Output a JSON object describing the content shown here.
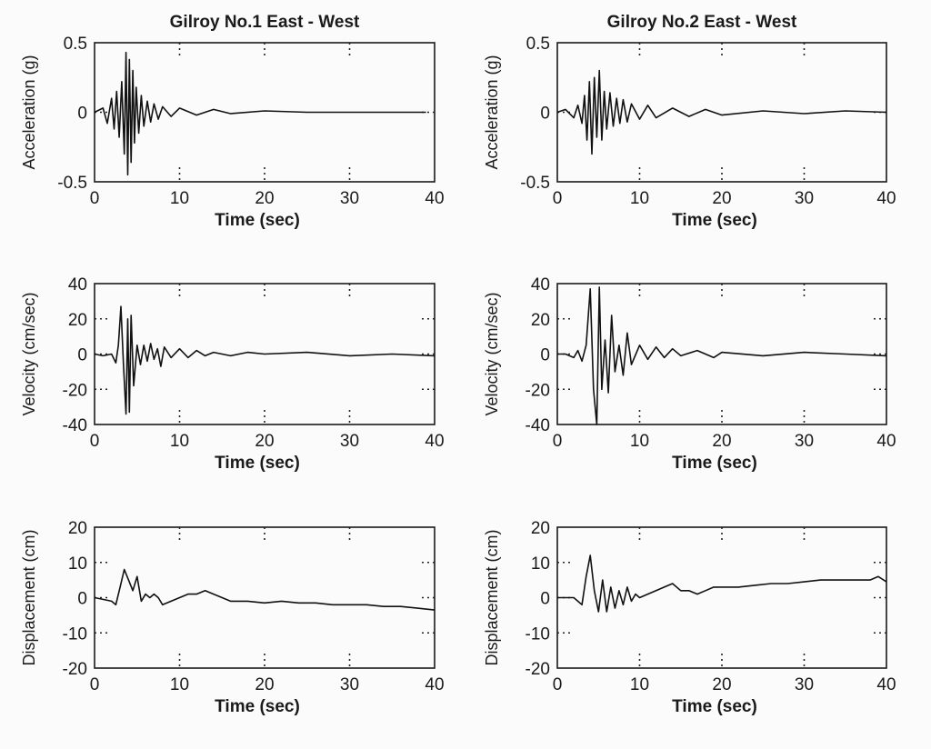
{
  "chart_data": [
    {
      "type": "line",
      "title": "Gilroy No.1 East - West",
      "xlabel": "Time (sec)",
      "ylabel": "Acceleration (g)",
      "xlim": [
        0,
        40
      ],
      "ylim": [
        -0.5,
        0.5
      ],
      "xticks": [
        0,
        10,
        20,
        30,
        40
      ],
      "yticks": [
        {
          "v": 0.5,
          "label": "0.5"
        },
        {
          "v": 0,
          "label": "0"
        },
        {
          "v": -0.5,
          "label": "-0.5"
        }
      ],
      "grid": "dotted",
      "series": [
        {
          "x": [
            0,
            1,
            1.5,
            2,
            2.3,
            2.6,
            2.9,
            3.2,
            3.5,
            3.7,
            3.9,
            4.1,
            4.3,
            4.5,
            4.7,
            4.9,
            5.2,
            5.5,
            5.8,
            6.2,
            6.6,
            7,
            7.5,
            8,
            9,
            10,
            12,
            14,
            16,
            20,
            25,
            30,
            35,
            39
          ],
          "y": [
            0,
            0.03,
            -0.08,
            0.1,
            -0.12,
            0.15,
            -0.18,
            0.22,
            -0.3,
            0.43,
            -0.45,
            0.38,
            -0.36,
            0.3,
            -0.22,
            0.18,
            -0.15,
            0.12,
            -0.1,
            0.08,
            -0.07,
            0.06,
            -0.05,
            0.04,
            -0.03,
            0.03,
            -0.02,
            0.02,
            -0.01,
            0.01,
            0,
            0,
            0,
            0
          ]
        }
      ]
    },
    {
      "type": "line",
      "title": "Gilroy No.2 East - West",
      "xlabel": "Time (sec)",
      "ylabel": "Acceleration (g)",
      "xlim": [
        0,
        40
      ],
      "ylim": [
        -0.5,
        0.5
      ],
      "xticks": [
        0,
        10,
        20,
        30,
        40
      ],
      "yticks": [
        {
          "v": 0.5,
          "label": "0.5"
        },
        {
          "v": 0,
          "label": "0"
        },
        {
          "v": -0.5,
          "label": "-0.5"
        }
      ],
      "grid": "dotted",
      "series": [
        {
          "x": [
            0,
            1,
            2,
            2.5,
            3,
            3.3,
            3.6,
            3.9,
            4.2,
            4.5,
            4.8,
            5.1,
            5.4,
            5.7,
            6,
            6.4,
            6.8,
            7.2,
            7.6,
            8,
            8.5,
            9,
            10,
            11,
            12,
            14,
            16,
            18,
            20,
            25,
            30,
            35,
            40
          ],
          "y": [
            0,
            0.02,
            -0.04,
            0.05,
            -0.08,
            0.12,
            -0.2,
            0.22,
            -0.3,
            0.25,
            -0.18,
            0.3,
            -0.2,
            0.15,
            -0.12,
            0.14,
            -0.1,
            0.1,
            -0.08,
            0.09,
            -0.07,
            0.06,
            -0.05,
            0.05,
            -0.04,
            0.03,
            -0.03,
            0.02,
            -0.02,
            0.01,
            -0.01,
            0.01,
            0
          ]
        }
      ]
    },
    {
      "type": "line",
      "xlabel": "Time (sec)",
      "ylabel": "Velocity (cm/sec)",
      "xlim": [
        0,
        40
      ],
      "ylim": [
        -40,
        40
      ],
      "xticks": [
        0,
        10,
        20,
        30,
        40
      ],
      "yticks": [
        {
          "v": 40,
          "label": "40"
        },
        {
          "v": 20,
          "label": "20"
        },
        {
          "v": 0,
          "label": "0"
        },
        {
          "v": -20,
          "label": "-20"
        },
        {
          "v": -40,
          "label": "-40"
        }
      ],
      "grid": "dotted",
      "series": [
        {
          "x": [
            0,
            1,
            2,
            2.5,
            2.8,
            3.1,
            3.4,
            3.7,
            3.9,
            4.1,
            4.3,
            4.6,
            5,
            5.4,
            5.8,
            6.2,
            6.6,
            7,
            7.4,
            7.8,
            8.2,
            9,
            10,
            11,
            12,
            13,
            14,
            16,
            18,
            20,
            25,
            30,
            35,
            40
          ],
          "y": [
            0,
            -1,
            0,
            -5,
            5,
            27,
            -6,
            -34,
            20,
            -33,
            22,
            -18,
            5,
            -6,
            5,
            -4,
            6,
            -3,
            3,
            -7,
            4,
            -2,
            3,
            -2,
            2,
            -1,
            1,
            -1,
            1,
            0,
            1,
            -1,
            0,
            -1
          ]
        }
      ]
    },
    {
      "type": "line",
      "xlabel": "Time (sec)",
      "ylabel": "Velocity (cm/sec)",
      "xlim": [
        0,
        40
      ],
      "ylim": [
        -40,
        40
      ],
      "xticks": [
        0,
        10,
        20,
        30,
        40
      ],
      "yticks": [
        {
          "v": 40,
          "label": "40"
        },
        {
          "v": 20,
          "label": "20"
        },
        {
          "v": 0,
          "label": "0"
        },
        {
          "v": -20,
          "label": "-20"
        },
        {
          "v": -40,
          "label": "-40"
        }
      ],
      "grid": "dotted",
      "series": [
        {
          "x": [
            0,
            1,
            2,
            2.5,
            3,
            3.5,
            4,
            4.4,
            4.8,
            5.1,
            5.4,
            5.8,
            6.2,
            6.6,
            7,
            7.5,
            8,
            8.5,
            9,
            10,
            11,
            12,
            13,
            14,
            15,
            17,
            19,
            20,
            25,
            30,
            35,
            40
          ],
          "y": [
            0,
            0,
            -2,
            2,
            -4,
            5,
            37,
            -20,
            -40,
            38,
            -20,
            8,
            -22,
            22,
            -10,
            5,
            -12,
            12,
            -6,
            5,
            -3,
            4,
            -2,
            3,
            -1,
            2,
            -2,
            1,
            -1,
            1,
            0,
            -1
          ]
        }
      ]
    },
    {
      "type": "line",
      "xlabel": "Time (sec)",
      "ylabel": "Displacement (cm)",
      "xlim": [
        0,
        40
      ],
      "ylim": [
        -20,
        20
      ],
      "xticks": [
        0,
        10,
        20,
        30,
        40
      ],
      "yticks": [
        {
          "v": 20,
          "label": "20"
        },
        {
          "v": 10,
          "label": "10"
        },
        {
          "v": 0,
          "label": "0"
        },
        {
          "v": -10,
          "label": "-10"
        },
        {
          "v": -20,
          "label": "-20"
        }
      ],
      "grid": "dotted",
      "series": [
        {
          "x": [
            0,
            1,
            2,
            2.5,
            3,
            3.5,
            4,
            4.5,
            5,
            5.5,
            6,
            6.5,
            7,
            7.5,
            8,
            9,
            10,
            11,
            12,
            13,
            14,
            15,
            16,
            18,
            20,
            22,
            24,
            26,
            28,
            30,
            32,
            34,
            36,
            38,
            40
          ],
          "y": [
            0,
            -0.5,
            -1,
            -2,
            3,
            8,
            5,
            2,
            6,
            -1,
            1,
            0,
            1,
            0,
            -2,
            -1,
            0,
            1,
            1,
            2,
            1,
            0,
            -1,
            -1,
            -1.5,
            -1,
            -1.5,
            -1.5,
            -2,
            -2,
            -2,
            -2.5,
            -2.5,
            -3,
            -3.5
          ]
        }
      ]
    },
    {
      "type": "line",
      "xlabel": "Time (sec)",
      "ylabel": "Displacement (cm)",
      "xlim": [
        0,
        40
      ],
      "ylim": [
        -20,
        20
      ],
      "xticks": [
        0,
        10,
        20,
        30,
        40
      ],
      "yticks": [
        {
          "v": 20,
          "label": "20"
        },
        {
          "v": 10,
          "label": "10"
        },
        {
          "v": 0,
          "label": "0"
        },
        {
          "v": -10,
          "label": "-10"
        },
        {
          "v": -20,
          "label": "-20"
        }
      ],
      "grid": "dotted",
      "series": [
        {
          "x": [
            0,
            1,
            2,
            2.5,
            3,
            3.5,
            4,
            4.5,
            5,
            5.5,
            6,
            6.5,
            7,
            7.5,
            8,
            8.5,
            9,
            9.5,
            10,
            11,
            12,
            13,
            14,
            15,
            16,
            17,
            18,
            19,
            20,
            22,
            24,
            26,
            28,
            30,
            32,
            34,
            36,
            38,
            39,
            40
          ],
          "y": [
            0,
            0,
            0,
            -1,
            -2,
            6,
            12,
            2,
            -4,
            5,
            -4,
            3,
            -3,
            2,
            -2,
            3,
            -1,
            1,
            0,
            1,
            2,
            3,
            4,
            2,
            2,
            1,
            2,
            3,
            3,
            3,
            3.5,
            4,
            4,
            4.5,
            5,
            5,
            5,
            5,
            6,
            4.5
          ]
        }
      ]
    }
  ]
}
